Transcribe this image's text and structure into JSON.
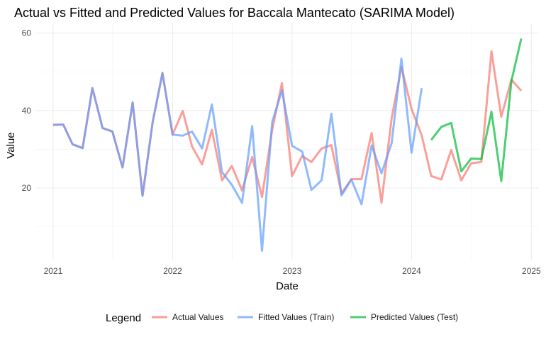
{
  "chart_data": {
    "type": "line",
    "title": "Actual vs Fitted and Predicted Values for Baccala Mantecato (SARIMA Model)",
    "xlabel": "Date",
    "ylabel": "Value",
    "x_ticks": [
      "2021",
      "2022",
      "2023",
      "2024",
      "2025"
    ],
    "y_ticks": [
      20,
      40,
      60
    ],
    "xlim": [
      "2020-11-08",
      "2025-01-24"
    ],
    "ylim": [
      1.5,
      62.5
    ],
    "grid": true,
    "legend": {
      "position": "bottom",
      "title": "Legend",
      "items": [
        "Actual Values",
        "Fitted Values (Train)",
        "Predicted Values (Test)"
      ]
    },
    "colors": {
      "actual": "#F8766D",
      "fitted": "#619CFF",
      "predicted": "#00BA38"
    },
    "series": [
      {
        "name": "Actual Values",
        "color": "#F8766D",
        "x": [
          "2021-01-01",
          "2021-02-01",
          "2021-03-01",
          "2021-04-01",
          "2021-05-01",
          "2021-06-01",
          "2021-07-01",
          "2021-08-01",
          "2021-09-01",
          "2021-10-01",
          "2021-11-01",
          "2021-12-01",
          "2022-01-01",
          "2022-02-01",
          "2022-03-01",
          "2022-04-01",
          "2022-05-01",
          "2022-06-01",
          "2022-07-01",
          "2022-08-01",
          "2022-09-01",
          "2022-10-01",
          "2022-11-01",
          "2022-12-01",
          "2023-01-01",
          "2023-02-01",
          "2023-03-01",
          "2023-04-01",
          "2023-05-01",
          "2023-06-01",
          "2023-07-01",
          "2023-08-01",
          "2023-09-01",
          "2023-10-01",
          "2023-11-01",
          "2023-12-01",
          "2024-01-01",
          "2024-02-01",
          "2024-03-01",
          "2024-04-01",
          "2024-05-01",
          "2024-06-01",
          "2024-07-01",
          "2024-08-01",
          "2024-09-01",
          "2024-10-01",
          "2024-11-01",
          "2024-12-01"
        ],
        "y": [
          36.3,
          36.4,
          31.3,
          30.3,
          45.8,
          35.5,
          34.6,
          25.3,
          42.1,
          18.0,
          37.0,
          49.7,
          33.8,
          39.9,
          30.8,
          26.1,
          35.0,
          22.0,
          25.7,
          19.4,
          28.0,
          17.7,
          35.0,
          47.1,
          23.1,
          28.3,
          26.7,
          30.2,
          31.1,
          18.6,
          22.3,
          22.3,
          34.2,
          16.2,
          38.0,
          51.3,
          40.4,
          33.6,
          23.1,
          22.2,
          29.8,
          22.0,
          26.4,
          26.7,
          55.3,
          38.4,
          48.0,
          45.1
        ]
      },
      {
        "name": "Fitted Values (Train)",
        "color": "#619CFF",
        "x": [
          "2021-01-01",
          "2021-02-01",
          "2021-03-01",
          "2021-04-01",
          "2021-05-01",
          "2021-06-01",
          "2021-07-01",
          "2021-08-01",
          "2021-09-01",
          "2021-10-01",
          "2021-11-01",
          "2021-12-01",
          "2022-01-01",
          "2022-02-01",
          "2022-03-01",
          "2022-04-01",
          "2022-05-01",
          "2022-06-01",
          "2022-07-01",
          "2022-08-01",
          "2022-09-01",
          "2022-10-01",
          "2022-11-01",
          "2022-12-01",
          "2023-01-01",
          "2023-02-01",
          "2023-03-01",
          "2023-04-01",
          "2023-05-01",
          "2023-06-01",
          "2023-07-01",
          "2023-08-01",
          "2023-09-01",
          "2023-10-01",
          "2023-11-01",
          "2023-12-01",
          "2024-01-01",
          "2024-02-01"
        ],
        "y": [
          36.3,
          36.4,
          31.3,
          30.3,
          45.8,
          35.5,
          34.6,
          25.3,
          42.1,
          18.0,
          37.0,
          49.7,
          33.8,
          33.5,
          34.6,
          30.2,
          41.6,
          24.1,
          20.8,
          16.2,
          36.0,
          3.8,
          37.0,
          45.2,
          30.9,
          29.4,
          19.5,
          22.0,
          39.2,
          18.1,
          22.2,
          15.8,
          31.0,
          23.8,
          31.6,
          53.4,
          29.1,
          45.8
        ]
      },
      {
        "name": "Predicted Values (Test)",
        "color": "#00BA38",
        "x": [
          "2024-03-01",
          "2024-04-01",
          "2024-05-01",
          "2024-06-01",
          "2024-07-01",
          "2024-08-01",
          "2024-09-01",
          "2024-10-01",
          "2024-11-01",
          "2024-12-01"
        ],
        "y": [
          32.4,
          35.8,
          36.8,
          24.3,
          27.6,
          27.5,
          39.7,
          21.8,
          47.6,
          58.6
        ]
      }
    ]
  }
}
